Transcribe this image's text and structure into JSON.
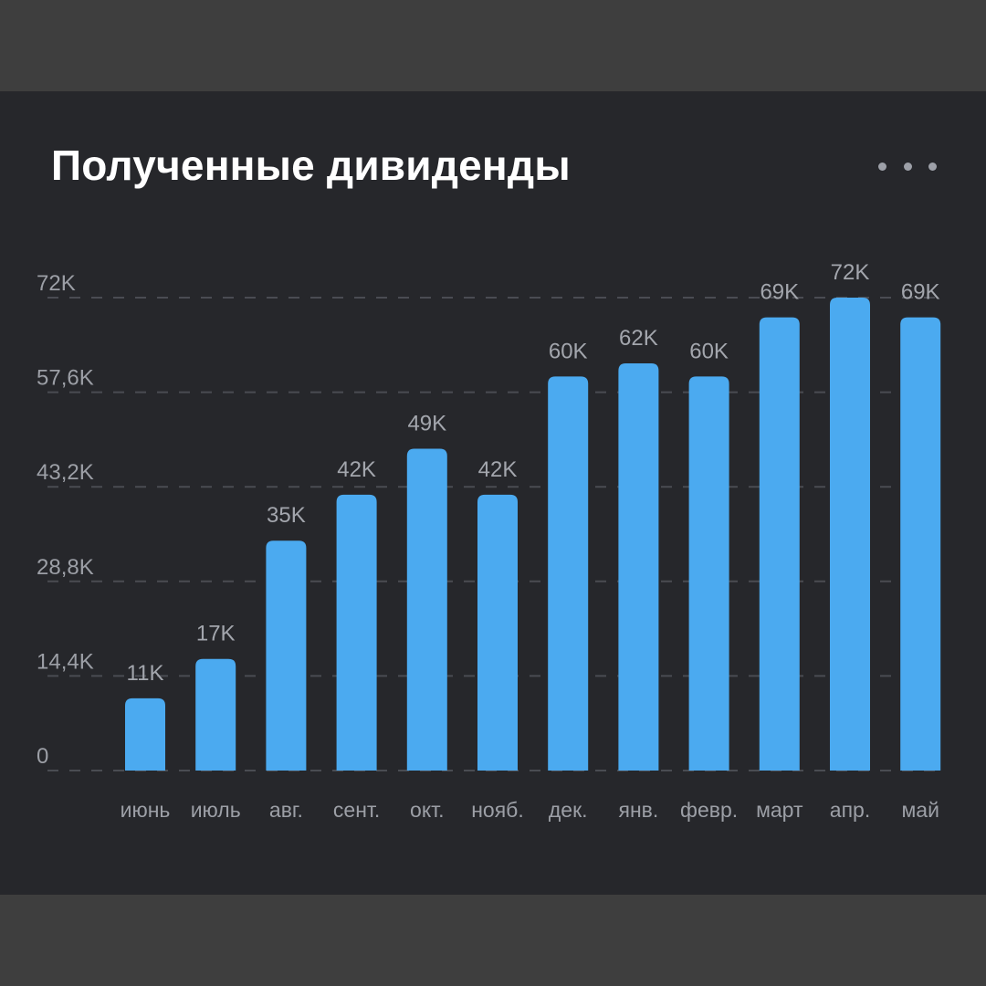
{
  "header": {
    "title": "Полученные дивиденды",
    "menu_icon": "more-horizontal-icon"
  },
  "colors": {
    "background": "#3e3e3e",
    "card": "#26272b",
    "bar": "#4baaf0",
    "grid": "#4a4c52"
  },
  "chart_data": {
    "type": "bar",
    "title": "Полученные дивиденды",
    "xlabel": "",
    "ylabel": "",
    "categories": [
      "июнь",
      "июль",
      "авг.",
      "сент.",
      "окт.",
      "нояб.",
      "дек.",
      "янв.",
      "февр.",
      "март",
      "апр.",
      "май"
    ],
    "values": [
      11000,
      17000,
      35000,
      42000,
      49000,
      42000,
      60000,
      62000,
      60000,
      69000,
      72000,
      69000
    ],
    "value_labels": [
      "11K",
      "17K",
      "35K",
      "42K",
      "49K",
      "42K",
      "60K",
      "62K",
      "60K",
      "69K",
      "72K",
      "69K"
    ],
    "ylim": [
      0,
      72000
    ],
    "yticks": [
      0,
      14400,
      28800,
      43200,
      57600,
      72000
    ],
    "ytick_labels": [
      "0",
      "14,4K",
      "28,8K",
      "43,2K",
      "57,6K",
      "72K"
    ],
    "grid": true,
    "legend": "none"
  }
}
